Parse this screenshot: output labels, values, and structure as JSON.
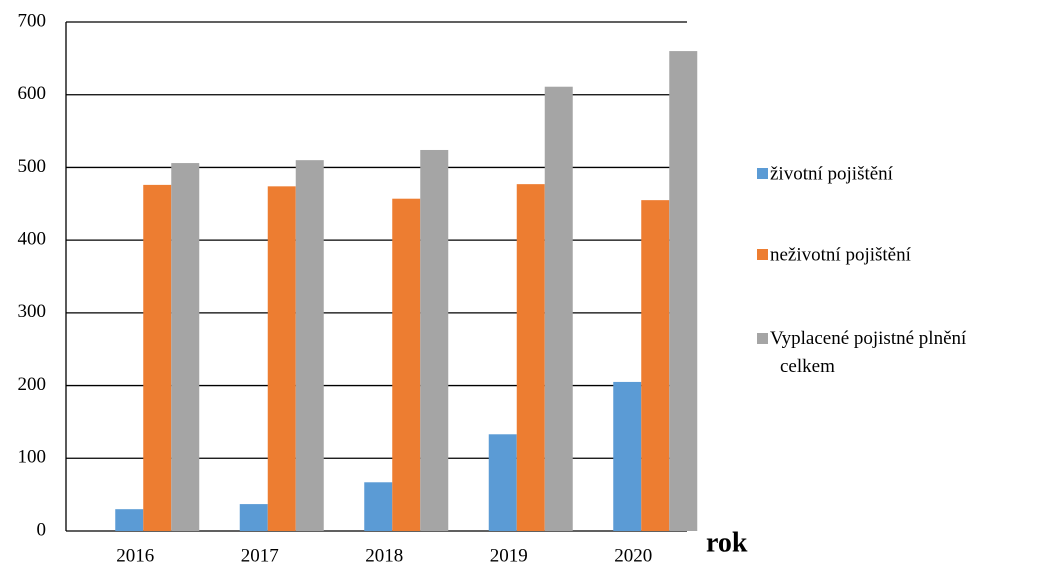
{
  "chart_data": {
    "type": "bar",
    "categories": [
      "2016",
      "2017",
      "2018",
      "2019",
      "2020"
    ],
    "series": [
      {
        "name": "životní pojištění",
        "color": "#5b9bd5",
        "values": [
          30,
          37,
          67,
          133,
          205
        ]
      },
      {
        "name": "neživotní pojištění",
        "color": "#ed7d31",
        "values": [
          476,
          474,
          457,
          477,
          455
        ]
      },
      {
        "name": "Vyplacené pojistné plnění celkem",
        "color": "#a5a5a5",
        "values": [
          506,
          510,
          524,
          611,
          660
        ]
      }
    ],
    "x_label": "rok",
    "ylim": [
      0,
      700
    ],
    "yticks": [
      0,
      100,
      200,
      300,
      400,
      500,
      600,
      700
    ],
    "grid": true,
    "legend": "right"
  }
}
